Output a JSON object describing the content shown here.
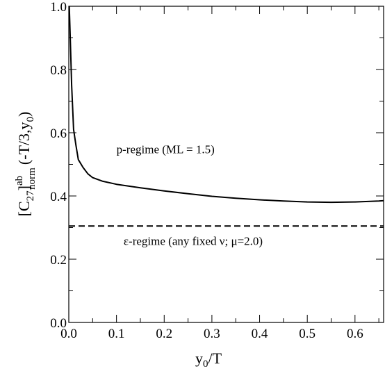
{
  "chart_data": {
    "type": "line",
    "title": "",
    "xlabel": {
      "main": "y",
      "sub": "0",
      "rest": "/T"
    },
    "ylabel": {
      "bracket_open": "[C",
      "sub": "27",
      "bracket_close": "]",
      "sup": "ab",
      "sub2": "norm",
      "args_open": "(-T/3,y",
      "args_sub": "0",
      "args_close": ")"
    },
    "xlim": [
      0.0,
      0.66
    ],
    "ylim": [
      0.0,
      1.0
    ],
    "x_ticks": [
      0.0,
      0.1,
      0.2,
      0.3,
      0.4,
      0.5,
      0.6
    ],
    "x_tick_labels": [
      "0.0",
      "0.1",
      "0.2",
      "0.3",
      "0.4",
      "0.5",
      "0.6"
    ],
    "y_ticks": [
      0.0,
      0.2,
      0.4,
      0.6,
      0.8,
      1.0
    ],
    "y_tick_labels": [
      "0.0",
      "0.2",
      "0.4",
      "0.6",
      "0.8",
      "1.0"
    ],
    "grid": false,
    "series": [
      {
        "style": "solid",
        "color": "#000000",
        "x": [
          0.001,
          0.003,
          0.006,
          0.01,
          0.015,
          0.02,
          0.03,
          0.04,
          0.05,
          0.07,
          0.1,
          0.15,
          0.2,
          0.25,
          0.3,
          0.35,
          0.4,
          0.45,
          0.5,
          0.55,
          0.6,
          0.65,
          0.66
        ],
        "y": [
          1.0,
          0.9,
          0.75,
          0.61,
          0.56,
          0.515,
          0.49,
          0.47,
          0.458,
          0.447,
          0.437,
          0.426,
          0.416,
          0.407,
          0.399,
          0.393,
          0.388,
          0.384,
          0.381,
          0.38,
          0.381,
          0.384,
          0.385
        ]
      },
      {
        "style": "dashed",
        "color": "#000000",
        "x": [
          0.0,
          0.66
        ],
        "y": [
          0.305,
          0.305
        ]
      }
    ],
    "annotations": [
      {
        "text": "p-regime (ML = 1.5)",
        "x": 0.1,
        "y": 0.535
      },
      {
        "text": "ε-regime (any fixed ν; μ=2.0)",
        "x": 0.115,
        "y": 0.245
      }
    ]
  }
}
